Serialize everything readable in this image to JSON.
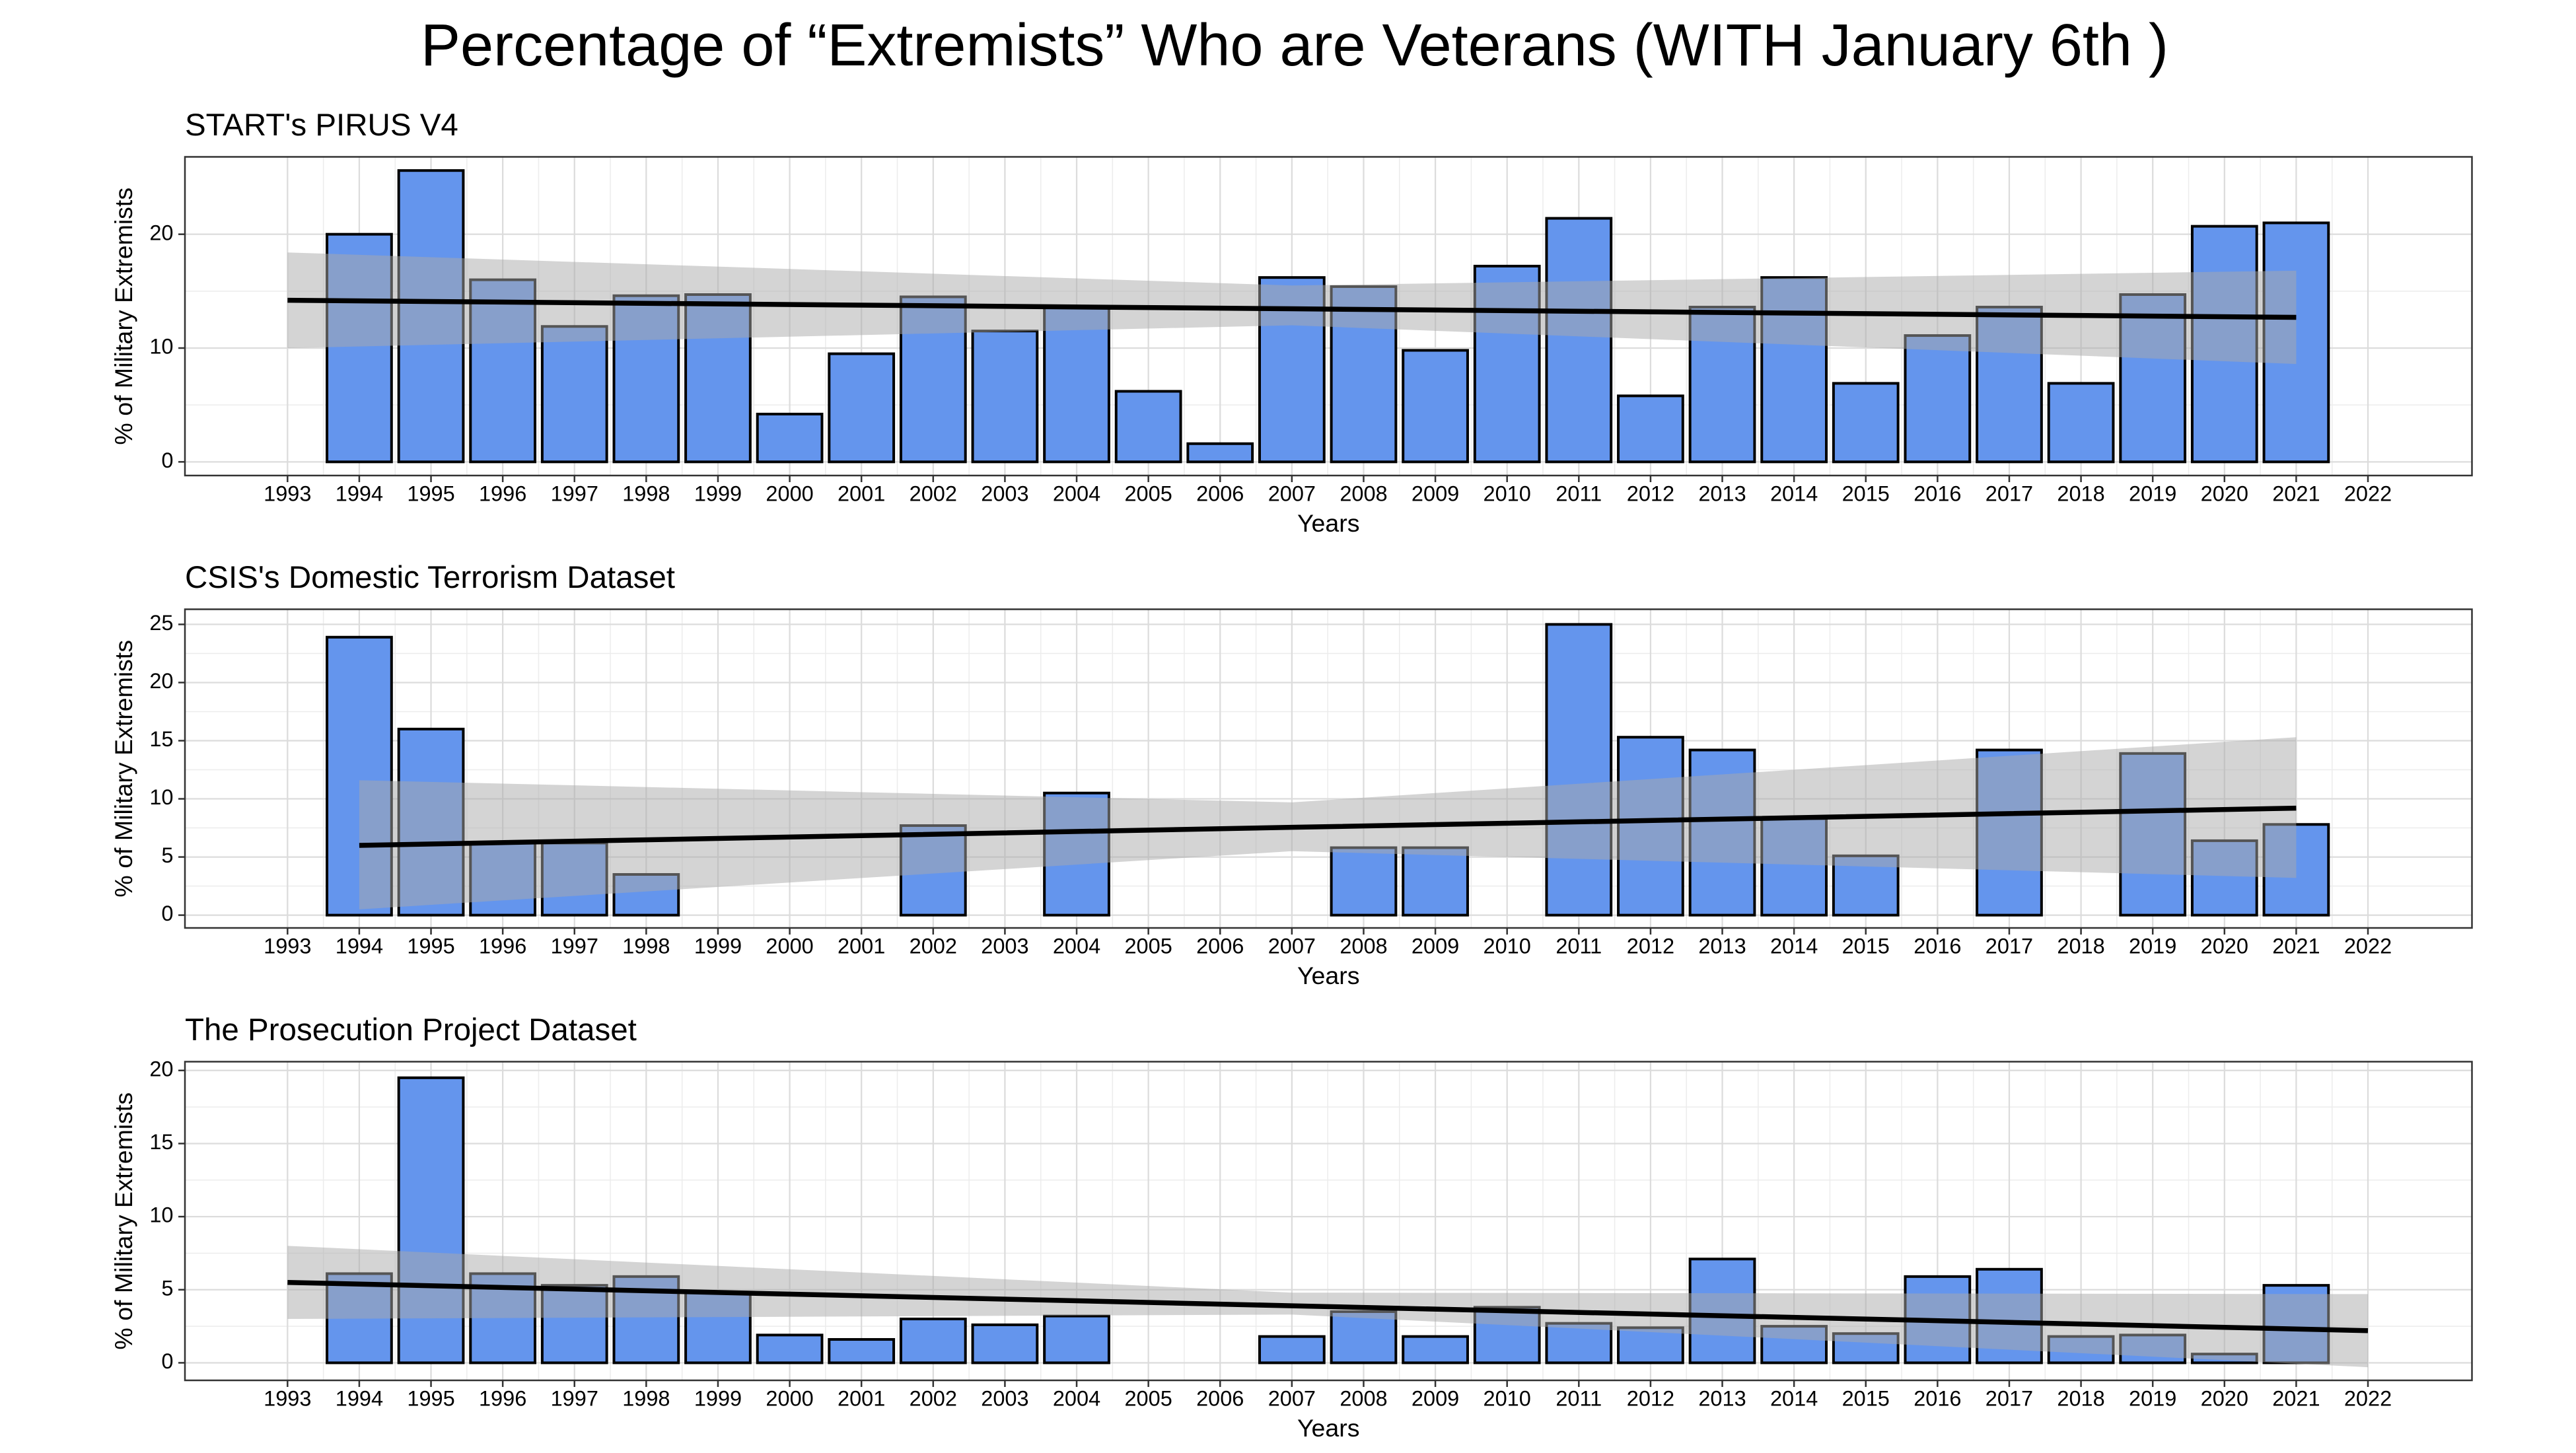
{
  "title": "Percentage of “Extremists” Who are Veterans (WITH January 6th )",
  "chart_data": [
    {
      "type": "bar",
      "title": "START's PIRUS V4",
      "x_label": "Years",
      "y_label": "% of Military Extremists",
      "color": "#6495ed",
      "x": [
        1994,
        1995,
        1996,
        1997,
        1998,
        1999,
        2000,
        2001,
        2002,
        2003,
        2004,
        2005,
        2006,
        2007,
        2008,
        2009,
        2010,
        2011,
        2012,
        2013,
        2014,
        2015,
        2016,
        2017,
        2018,
        2019,
        2020,
        2021
      ],
      "values": [
        20,
        25.6,
        16,
        11.9,
        14.6,
        14.7,
        4.2,
        9.5,
        14.5,
        11.5,
        13.6,
        6.2,
        1.6,
        16.2,
        15.4,
        9.8,
        17.2,
        21.4,
        5.8,
        13.6,
        16.2,
        6.9,
        11.1,
        13.6,
        6.9,
        14.7,
        20.7,
        21
      ],
      "xlim": [
        1991.57,
        2023.45
      ],
      "xticks": [
        1993,
        1994,
        1995,
        1996,
        1997,
        1998,
        1999,
        2000,
        2001,
        2002,
        2003,
        2004,
        2005,
        2006,
        2007,
        2008,
        2009,
        2010,
        2011,
        2012,
        2013,
        2014,
        2015,
        2016,
        2017,
        2018,
        2019,
        2020,
        2021,
        2022
      ],
      "ylim": [
        -1.2,
        26.8
      ],
      "yticks": [
        0,
        10,
        20
      ],
      "grid": true,
      "trend": {
        "x": [
          1993,
          2007,
          2021
        ],
        "values": [
          14.2,
          13.45,
          12.7
        ],
        "lower": [
          10,
          12,
          8.6
        ],
        "upper": [
          18.4,
          15.5,
          16.8
        ]
      }
    },
    {
      "type": "bar",
      "title": "CSIS's Domestic Terrorism Dataset",
      "x_label": "Years",
      "y_label": "% of Military Extremists",
      "color": "#6495ed",
      "x": [
        1994,
        1995,
        1996,
        1997,
        1998,
        1999,
        2000,
        2001,
        2002,
        2003,
        2004,
        2005,
        2006,
        2007,
        2008,
        2009,
        2010,
        2011,
        2012,
        2013,
        2014,
        2015,
        2016,
        2017,
        2018,
        2019,
        2020,
        2021
      ],
      "values": [
        23.9,
        16,
        6.2,
        6.2,
        3.5,
        0,
        0,
        0,
        7.7,
        0,
        10.5,
        0,
        0,
        0,
        5.8,
        5.8,
        0,
        25,
        15.3,
        14.2,
        8.3,
        5.1,
        null,
        14.2,
        null,
        13.9,
        6.4,
        7.8
      ],
      "xlim": [
        1991.57,
        2023.45
      ],
      "xticks": [
        1993,
        1994,
        1995,
        1996,
        1997,
        1998,
        1999,
        2000,
        2001,
        2002,
        2003,
        2004,
        2005,
        2006,
        2007,
        2008,
        2009,
        2010,
        2011,
        2012,
        2013,
        2014,
        2015,
        2016,
        2017,
        2018,
        2019,
        2020,
        2021,
        2022
      ],
      "ylim": [
        -1.1,
        26.3
      ],
      "yticks": [
        0,
        5,
        10,
        15,
        20,
        25
      ],
      "grid": true,
      "trend": {
        "x": [
          1994,
          2007,
          2021
        ],
        "values": [
          6.0,
          7.55,
          9.2
        ],
        "lower": [
          0.5,
          5.5,
          3.2
        ],
        "upper": [
          11.6,
          9.7,
          15.3
        ]
      }
    },
    {
      "type": "bar",
      "title": "The Prosecution Project Dataset",
      "x_label": "Years",
      "y_label": "% of Military Extremists",
      "color": "#6495ed",
      "x": [
        1994,
        1995,
        1996,
        1997,
        1998,
        1999,
        2000,
        2001,
        2002,
        2003,
        2004,
        2005,
        2006,
        2007,
        2008,
        2009,
        2010,
        2011,
        2012,
        2013,
        2014,
        2015,
        2016,
        2017,
        2018,
        2019,
        2020,
        2021
      ],
      "values": [
        6.1,
        19.5,
        6.1,
        5.3,
        5.9,
        4.8,
        1.9,
        1.6,
        3.0,
        2.6,
        3.2,
        0,
        0,
        1.8,
        3.5,
        1.8,
        3.8,
        2.7,
        2.4,
        7.1,
        2.5,
        2.0,
        5.9,
        6.4,
        1.8,
        1.9,
        0.6,
        5.3
      ],
      "xlim": [
        1991.57,
        2023.45
      ],
      "xticks": [
        1993,
        1994,
        1995,
        1996,
        1997,
        1998,
        1999,
        2000,
        2001,
        2002,
        2003,
        2004,
        2005,
        2006,
        2007,
        2008,
        2009,
        2010,
        2011,
        2012,
        2013,
        2014,
        2015,
        2016,
        2017,
        2018,
        2019,
        2020,
        2021,
        2022
      ],
      "ylim": [
        -1.2,
        20.6
      ],
      "yticks": [
        0,
        5,
        10,
        15,
        20
      ],
      "grid": true,
      "trend": {
        "x": [
          1993,
          2007,
          2022
        ],
        "values": [
          5.5,
          3.9,
          2.2
        ],
        "lower": [
          3.0,
          3.3,
          -0.3
        ],
        "upper": [
          8.0,
          4.8,
          4.7
        ]
      }
    }
  ]
}
